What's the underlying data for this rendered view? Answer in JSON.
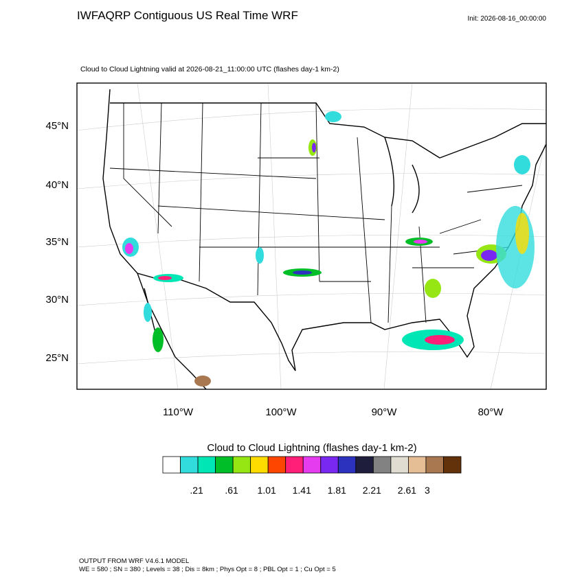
{
  "header": {
    "title": "IWFAQRP Contiguous US Real Time WRF",
    "init": "Init: 2026-08-16_00:00:00",
    "subtitle": "Cloud to Cloud Lightning valid at 2026-08-21_11:00:00 UTC   (flashes day-1 km-2)"
  },
  "map": {
    "lat_labels": [
      "45°N",
      "40°N",
      "35°N",
      "30°N",
      "25°N"
    ],
    "lon_labels": [
      "110°W",
      "100°W",
      "90°W",
      "80°W"
    ]
  },
  "colorbar": {
    "title": "Cloud to Cloud Lightning  (flashes day-1 km-2)",
    "colors": [
      "#ffffff",
      "#33dcdc",
      "#00e6b4",
      "#00be28",
      "#96e614",
      "#ffdc00",
      "#ff4600",
      "#ff1e78",
      "#e63cf0",
      "#7828f0",
      "#2d32be",
      "#1e1e3c",
      "#828282",
      "#e1dcd2",
      "#e6be96",
      "#aa7850",
      "#64320a"
    ],
    "labels": [
      ".21",
      ".61",
      "1.01",
      "1.41",
      "1.81",
      "2.21",
      "2.61",
      "3"
    ]
  },
  "footer": {
    "line1": "OUTPUT FROM WRF V4.6.1 MODEL",
    "line2": "WE = 580 ; SN = 380 ; Levels = 38 ; Dis = 8km ; Phys Opt = 8 ; PBL Opt = 1 ; Cu Opt = 5"
  }
}
